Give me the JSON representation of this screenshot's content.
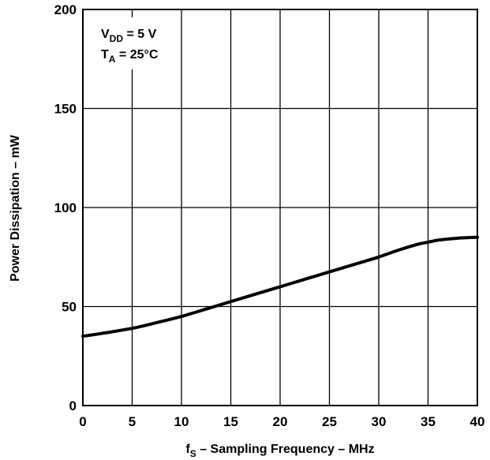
{
  "chart_data": {
    "type": "line",
    "title": "",
    "xlabel": {
      "prefix": "f",
      "subscript": "S",
      "text": " – Sampling Frequency – MHz"
    },
    "ylabel": "Power Dissipation – mW",
    "xlim": [
      0,
      40
    ],
    "ylim": [
      0,
      200
    ],
    "xticks": [
      0,
      5,
      10,
      15,
      20,
      25,
      30,
      35,
      40
    ],
    "yticks": [
      0,
      50,
      100,
      150,
      200
    ],
    "grid": true,
    "annotations": [
      {
        "main": "V",
        "subscript": "DD",
        "rest": " = 5 V"
      },
      {
        "main": "T",
        "subscript": "A",
        "rest": " = 25°C"
      }
    ],
    "series": [
      {
        "color": "#000000",
        "x": [
          0,
          2,
          5,
          8,
          10,
          13,
          15,
          18,
          20,
          23,
          25,
          28,
          30,
          32,
          34,
          35,
          36,
          38,
          40
        ],
        "y": [
          35,
          36.5,
          39,
          42.5,
          45,
          49.5,
          52.5,
          57,
          60,
          64.5,
          67.5,
          72,
          75,
          78.5,
          81.5,
          82.5,
          83.5,
          84.5,
          85
        ]
      }
    ]
  }
}
